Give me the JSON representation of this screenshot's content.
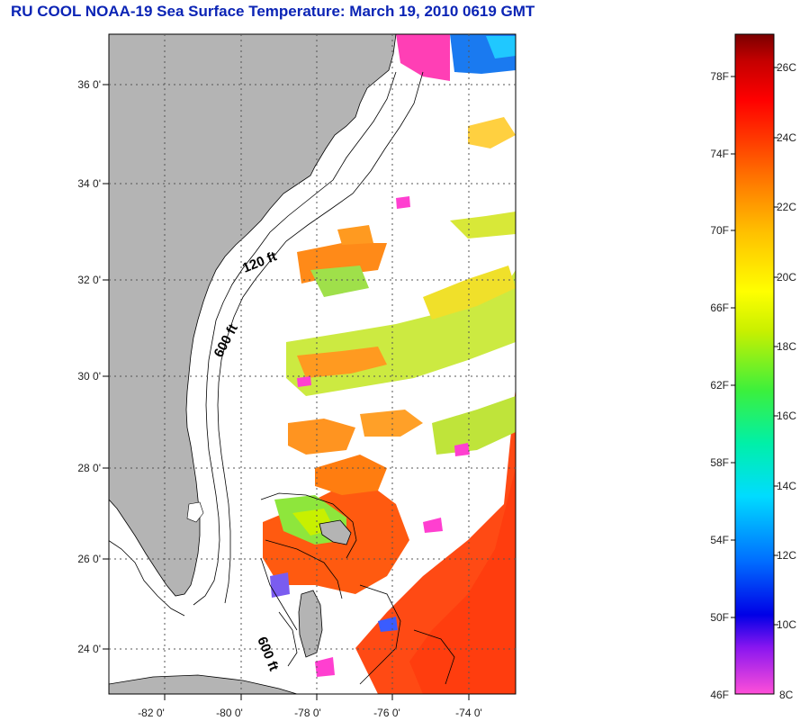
{
  "title": "RU COOL  NOAA-19  Sea Surface Temperature:  March 19, 2010 0619 GMT",
  "map": {
    "lat_ticks": [
      "24 0'",
      "26 0'",
      "28 0'",
      "30 0'",
      "32 0'",
      "34 0'",
      "36 0'"
    ],
    "lon_ticks": [
      "-82 0'",
      "-80 0'",
      "-78 0'",
      "-76 0'",
      "-74 0'"
    ],
    "contour_labels": [
      "120 ft",
      "600 ft",
      "600 ft"
    ],
    "colors": {
      "land": "#b4b4b4",
      "ocean_no_data": "#ffffff",
      "grid": "#555555"
    }
  },
  "colorbar": {
    "fahrenheit_labels": [
      "78F",
      "74F",
      "70F",
      "66F",
      "62F",
      "58F",
      "54F",
      "50F",
      "46F"
    ],
    "celsius_labels": [
      "26C",
      "24C",
      "22C",
      "20C",
      "18C",
      "16C",
      "14C",
      "12C",
      "10C",
      "8C"
    ],
    "range_c": [
      8,
      27
    ],
    "gradient_colors": [
      "#ff4fd8",
      "#8a16f0",
      "#0000e6",
      "#006cff",
      "#00dcff",
      "#00f0a8",
      "#3cf03c",
      "#c8f000",
      "#ffff00",
      "#ffc000",
      "#ff8000",
      "#ff3000",
      "#ff0000",
      "#c40000",
      "#7a0000"
    ]
  }
}
